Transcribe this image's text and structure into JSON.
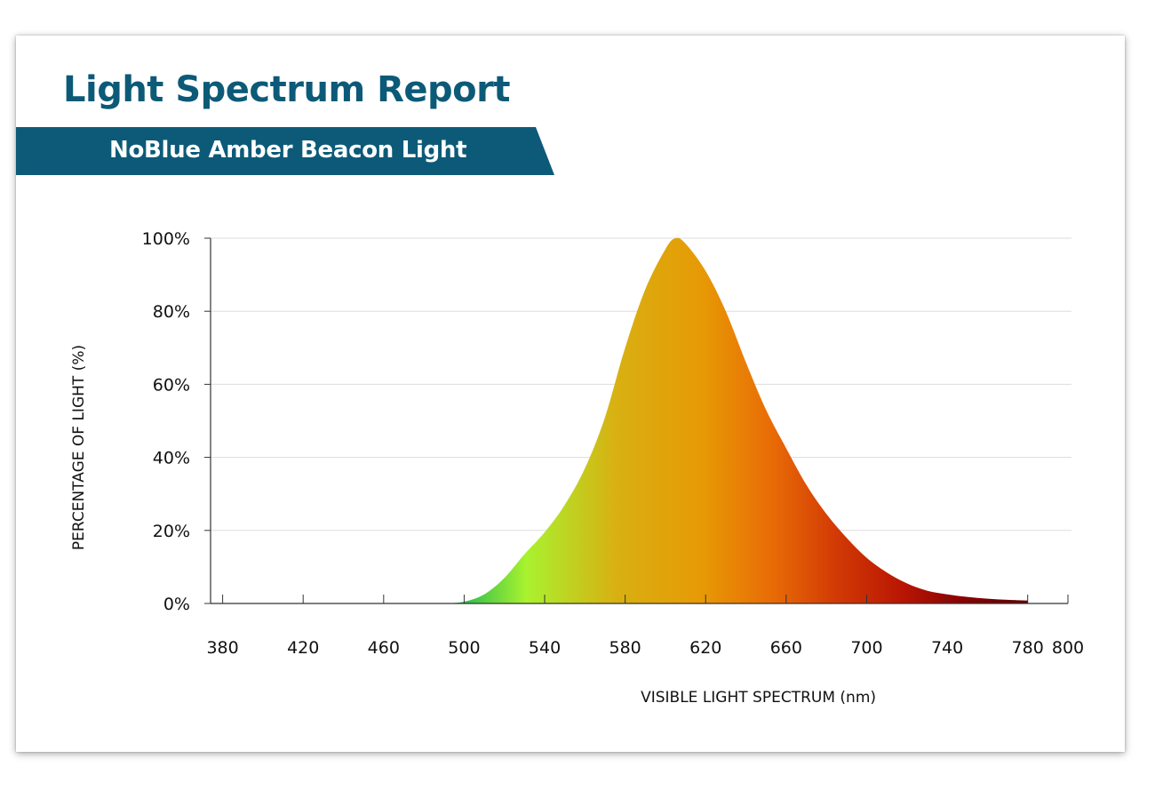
{
  "header": {
    "title": "Light Spectrum Report",
    "subtitle": "NoBlue Amber Beacon Light"
  },
  "colors": {
    "brand": "#0c5a78",
    "grid": "#dddddd",
    "axis": "#333333",
    "gradient": [
      "#2ebd4e",
      "#a9f22f",
      "#d8b012",
      "#e79a05",
      "#e86a06",
      "#d23a05",
      "#b81503",
      "#8a0203",
      "#5e0203"
    ]
  },
  "chart_data": {
    "type": "area",
    "title": "",
    "xlabel": "VISIBLE LIGHT SPECTRUM (nm)",
    "ylabel": "PERCENTAGE OF LIGHT (%)",
    "xlim": [
      374,
      800
    ],
    "ylim": [
      0,
      100
    ],
    "x_ticks": [
      380,
      420,
      460,
      500,
      540,
      580,
      620,
      660,
      700,
      740,
      780,
      800
    ],
    "y_ticks": [
      0,
      20,
      40,
      60,
      80,
      100
    ],
    "y_tick_labels": [
      "0%",
      "20%",
      "40%",
      "60%",
      "80%",
      "100%"
    ],
    "grid": true,
    "legend": "none",
    "x": [
      490,
      500,
      510,
      520,
      530,
      540,
      550,
      560,
      570,
      580,
      590,
      600,
      605,
      610,
      620,
      630,
      640,
      650,
      660,
      670,
      680,
      690,
      700,
      710,
      720,
      730,
      740,
      750,
      760,
      770,
      780
    ],
    "values": [
      0,
      0.5,
      2.5,
      7,
      13.5,
      19.5,
      27,
      37,
      51,
      70,
      86,
      97,
      100,
      98.5,
      91,
      80,
      66,
      53,
      42.5,
      32.5,
      24.5,
      18,
      12.5,
      8.5,
      5.5,
      3.5,
      2.5,
      1.8,
      1.3,
      1,
      0.8
    ]
  }
}
